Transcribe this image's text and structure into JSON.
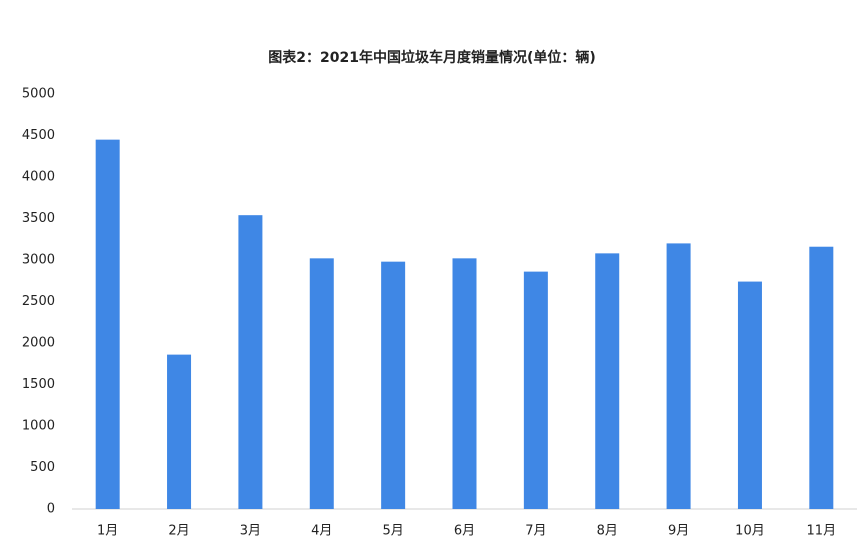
{
  "chart_data": {
    "type": "bar",
    "title": "图表2：2021年中国垃圾车月度销量情况(单位：辆)",
    "categories": [
      "1月",
      "2月",
      "3月",
      "4月",
      "5月",
      "6月",
      "7月",
      "8月",
      "9月",
      "10月",
      "11月"
    ],
    "values": [
      4450,
      1860,
      3540,
      3020,
      2980,
      3020,
      2860,
      3080,
      3200,
      2740,
      3160
    ],
    "color": "#3f87e5",
    "ylim": [
      0,
      5000
    ],
    "yticks": [
      0,
      500,
      1000,
      1500,
      2000,
      2500,
      3000,
      3500,
      4000,
      4500,
      5000
    ],
    "grid": false
  }
}
